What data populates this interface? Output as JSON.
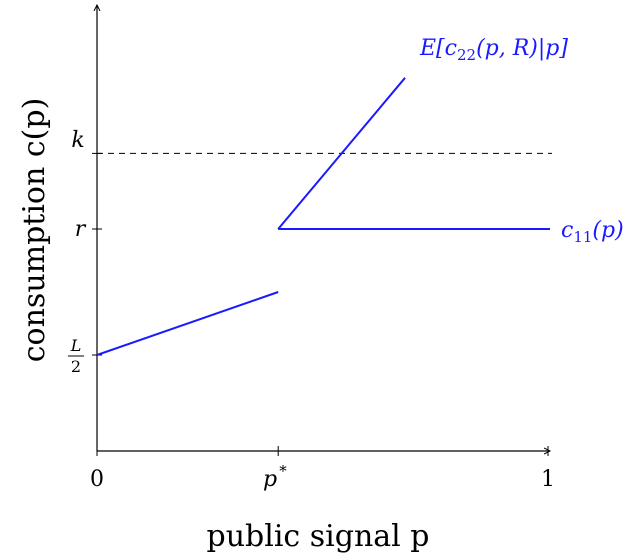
{
  "chart_data": {
    "type": "line",
    "title": "",
    "xlabel": "public signal p",
    "ylabel": "consumption c(p)",
    "xlim": [
      0,
      1
    ],
    "x_ticks": [
      {
        "value": 0,
        "label": "0"
      },
      {
        "value": 0.4,
        "label": "p*"
      },
      {
        "value": 1,
        "label": "1"
      }
    ],
    "y_ticks": [
      {
        "value": 0.5,
        "label": "L/2"
      },
      {
        "value": 1.0,
        "label": "r"
      },
      {
        "value": 1.3,
        "label": "k"
      }
    ],
    "series": [
      {
        "name": "",
        "x": [
          0,
          0.4
        ],
        "y": [
          0.5,
          0.75
        ]
      },
      {
        "name": "c11(p)",
        "x": [
          0.4,
          1.0
        ],
        "y": [
          1.0,
          1.0
        ]
      },
      {
        "name": "E[c22(p, R)|p]",
        "x": [
          0.4,
          0.68
        ],
        "y": [
          1.0,
          1.6
        ]
      }
    ],
    "reference_lines": [
      {
        "orientation": "horizontal",
        "value": 1.3,
        "style": "dashed",
        "label": "k"
      }
    ],
    "labels": {
      "c11_main": "c",
      "c11_sub": "11",
      "c11_arg": "(p)",
      "e_pre": "E[c",
      "e_sub": "22",
      "e_post": "(p, R)|p]"
    },
    "grid": false,
    "line_color": "#1a1aff"
  }
}
